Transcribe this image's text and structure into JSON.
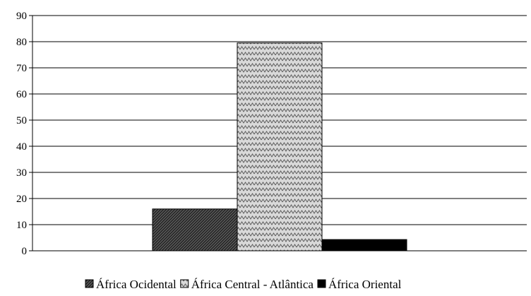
{
  "chart_data": {
    "type": "bar",
    "categories": [
      ""
    ],
    "series": [
      {
        "name": "África Ocidental",
        "values": [
          16
        ],
        "pattern": "diagonal-dark"
      },
      {
        "name": "África Central - Atlântica",
        "values": [
          79.5
        ],
        "pattern": "zigzag-light"
      },
      {
        "name": "África Oriental",
        "values": [
          4.3
        ],
        "pattern": "solid-black"
      }
    ],
    "ylim": [
      0,
      90
    ],
    "yticks": [
      "0",
      "10",
      "20",
      "30",
      "40",
      "50",
      "60",
      "70",
      "80",
      "90"
    ],
    "grid": true,
    "legend_position": "bottom",
    "colors": {
      "grid": "#000000",
      "bar_outline": "#000000",
      "solid": "#000000"
    }
  }
}
